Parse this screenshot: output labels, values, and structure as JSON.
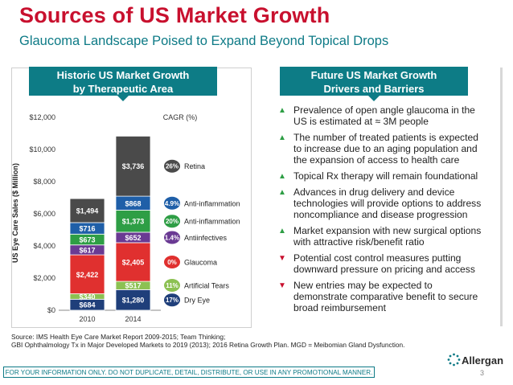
{
  "slide": {
    "title": "Sources of US Market Growth",
    "subtitle": "Glaucoma Landscape Poised to Expand Beyond Topical Drops",
    "left_banner": [
      "Historic US Market Growth",
      "by Therapeutic Area"
    ],
    "right_banner": [
      "Future US Market Growth",
      "Drivers and Barriers"
    ],
    "bullets": [
      {
        "marker": "▲",
        "type": "up",
        "text": "Prevalence of open angle glaucoma in the US is estimated at ≈ 3M people"
      },
      {
        "marker": "▲",
        "type": "up",
        "text": "The number of treated patients is expected to increase due to an aging population and the expansion of access to health care"
      },
      {
        "marker": "▲",
        "type": "up",
        "text": "Topical Rx therapy will remain foundational"
      },
      {
        "marker": "▲",
        "type": "up",
        "text": "Advances in drug delivery and device technologies will provide options to address noncompliance and disease progression"
      },
      {
        "marker": "▲",
        "type": "up",
        "text": "Market expansion with new surgical options with attractive risk/benefit ratio"
      },
      {
        "marker": "▼",
        "type": "down",
        "text": "Potential cost control measures putting downward pressure on pricing and access"
      },
      {
        "marker": "▼",
        "type": "down",
        "text": "New entries may be expected to demonstrate comparative benefit to secure broad reimbursement"
      }
    ],
    "source_lines": [
      "Source: IMS Health Eye Care Market Report 2009-2015; Team Thinking;",
      "GBI Ophthalmology Tx in Major Developed Markets to 2019 (2013); 2016 Retina Growth Plan. MGD = Meibomian Gland Dysfunction."
    ],
    "disclaimer": "FOR YOUR INFORMATION ONLY. DO NOT DUPLICATE, DETAIL, DISTRIBUTE, OR USE IN ANY PROMOTIONAL MANNER.",
    "logo_text": "Allergan",
    "page_number": "3"
  },
  "chart_data": {
    "type": "bar",
    "stacked": true,
    "categories": [
      "2010",
      "2014"
    ],
    "ylabel": "US Eye Care Sales ($ Million)",
    "ylim": [
      0,
      12000
    ],
    "yticks": [
      0,
      2000,
      4000,
      6000,
      8000,
      10000,
      12000
    ],
    "ytick_labels": [
      "$0",
      "$2,000",
      "$4,000",
      "$6,000",
      "$8,000",
      "$10,000",
      "$12,000"
    ],
    "cagr_header": "CAGR (%)",
    "series": [
      {
        "name": "Dry Eye",
        "color": "#1f3f7a",
        "values": [
          684,
          1280
        ],
        "labels": [
          "$684",
          "$1,280"
        ],
        "cagr": "17%",
        "cagr_color": "#1f3f7a"
      },
      {
        "name": "Artificial Tears",
        "color": "#8cc152",
        "values": [
          340,
          517
        ],
        "labels": [
          "$340",
          "$517"
        ],
        "cagr": "11%",
        "cagr_color": "#8cc152"
      },
      {
        "name": "Glaucoma",
        "color": "#e0302f",
        "values": [
          2422,
          2405
        ],
        "labels": [
          "$2,422",
          "$2,405"
        ],
        "cagr": "0%",
        "cagr_color": "#e0302f"
      },
      {
        "name": "Antiinfectives",
        "color": "#6a3a93",
        "values": [
          617,
          652
        ],
        "labels": [
          "$617",
          "$652"
        ],
        "cagr": "1.4%",
        "cagr_color": "#6a3a93"
      },
      {
        "name": "Anti-inflammation",
        "color": "#2e9e45",
        "values": [
          673,
          1373
        ],
        "labels": [
          "$673",
          "$1,373"
        ],
        "cagr": "20%",
        "cagr_color": "#2e9e45"
      },
      {
        "name": "Anti-inflammation",
        "color": "#1f5fa8",
        "values": [
          716,
          868
        ],
        "labels": [
          "$716",
          "$868"
        ],
        "cagr": "4.9%",
        "cagr_color": "#1f5fa8"
      },
      {
        "name": "Retina",
        "color": "#4a4a4a",
        "values": [
          1494,
          3736
        ],
        "labels": [
          "$1,494",
          "$3,736"
        ],
        "cagr": "26%",
        "cagr_color": "#4a4a4a"
      }
    ]
  }
}
